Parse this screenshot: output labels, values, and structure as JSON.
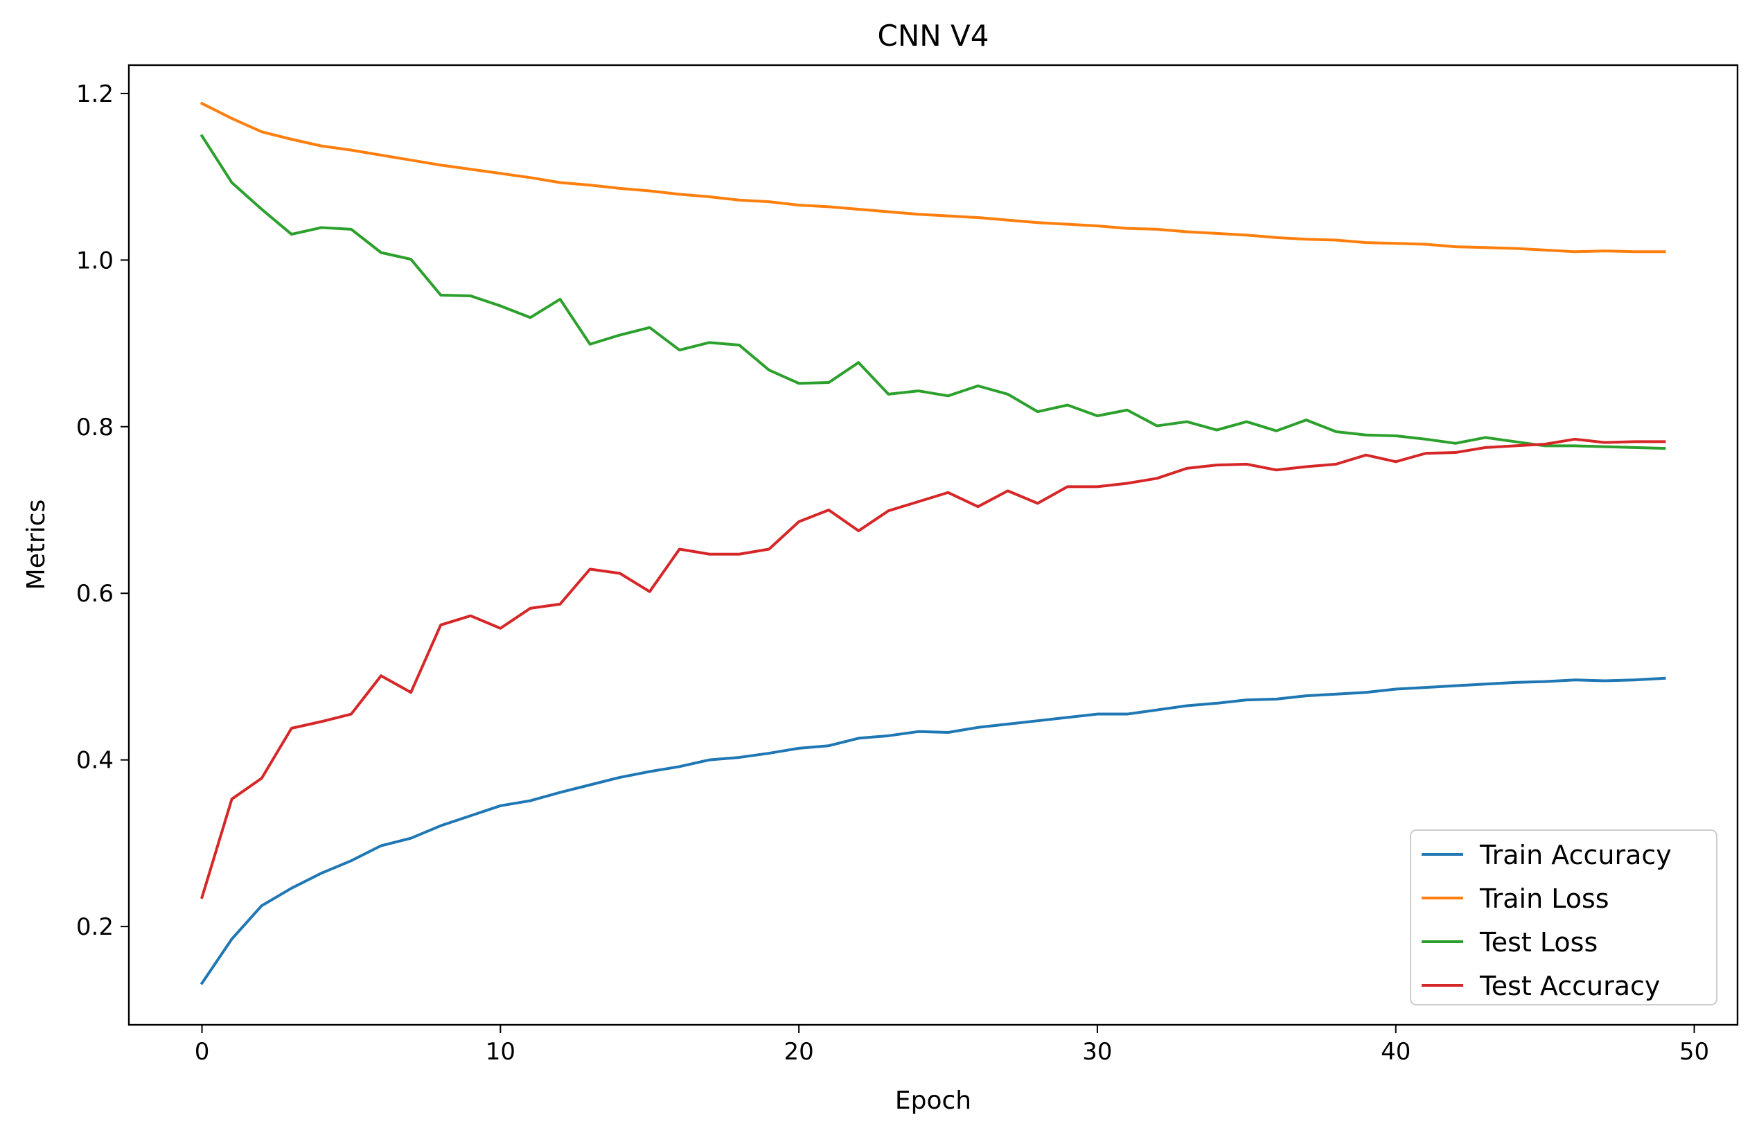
{
  "chart_data": {
    "type": "line",
    "title": "CNN V4",
    "xlabel": "Epoch",
    "ylabel": "Metrics",
    "xlim": [
      -2.45,
      51.45
    ],
    "ylim": [
      0.082,
      1.234
    ],
    "xticks": [
      0,
      10,
      20,
      30,
      40,
      50
    ],
    "yticks": [
      0.2,
      0.4,
      0.6,
      0.8,
      1.0,
      1.2
    ],
    "ytick_labels": [
      "0.2",
      "0.4",
      "0.6",
      "0.8",
      "1.0",
      "1.2"
    ],
    "grid": false,
    "legend_position": "lower-right",
    "x": [
      0,
      1,
      2,
      3,
      4,
      5,
      6,
      7,
      8,
      9,
      10,
      11,
      12,
      13,
      14,
      15,
      16,
      17,
      18,
      19,
      20,
      21,
      22,
      23,
      24,
      25,
      26,
      27,
      28,
      29,
      30,
      31,
      32,
      33,
      34,
      35,
      36,
      37,
      38,
      39,
      40,
      41,
      42,
      43,
      44,
      45,
      46,
      47,
      48,
      49
    ],
    "series": [
      {
        "name": "Train Accuracy",
        "color": "#1f77b4",
        "values": [
          0.132,
          0.185,
          0.225,
          0.246,
          0.264,
          0.279,
          0.297,
          0.306,
          0.321,
          0.333,
          0.345,
          0.351,
          0.361,
          0.37,
          0.379,
          0.386,
          0.392,
          0.4,
          0.403,
          0.408,
          0.414,
          0.417,
          0.426,
          0.429,
          0.434,
          0.433,
          0.439,
          0.443,
          0.447,
          0.451,
          0.455,
          0.455,
          0.46,
          0.465,
          0.468,
          0.472,
          0.473,
          0.477,
          0.479,
          0.481,
          0.485,
          0.487,
          0.489,
          0.491,
          0.493,
          0.494,
          0.496,
          0.495,
          0.496,
          0.498
        ]
      },
      {
        "name": "Train Loss",
        "color": "#ff7f0e",
        "values": [
          1.188,
          1.17,
          1.154,
          1.145,
          1.137,
          1.132,
          1.126,
          1.12,
          1.114,
          1.109,
          1.104,
          1.099,
          1.093,
          1.09,
          1.086,
          1.083,
          1.079,
          1.076,
          1.072,
          1.07,
          1.066,
          1.064,
          1.061,
          1.058,
          1.055,
          1.053,
          1.051,
          1.048,
          1.045,
          1.043,
          1.041,
          1.038,
          1.037,
          1.034,
          1.032,
          1.03,
          1.027,
          1.025,
          1.024,
          1.021,
          1.02,
          1.019,
          1.016,
          1.015,
          1.014,
          1.012,
          1.01,
          1.011,
          1.01,
          1.01
        ]
      },
      {
        "name": "Test Loss",
        "color": "#2ca02c",
        "values": [
          1.149,
          1.093,
          1.061,
          1.031,
          1.039,
          1.037,
          1.009,
          1.001,
          0.958,
          0.957,
          0.945,
          0.931,
          0.953,
          0.899,
          0.91,
          0.919,
          0.892,
          0.901,
          0.898,
          0.868,
          0.852,
          0.853,
          0.877,
          0.839,
          0.843,
          0.837,
          0.849,
          0.839,
          0.818,
          0.826,
          0.813,
          0.82,
          0.801,
          0.806,
          0.796,
          0.806,
          0.795,
          0.808,
          0.794,
          0.79,
          0.789,
          0.785,
          0.78,
          0.787,
          0.782,
          0.777,
          0.777,
          0.776,
          0.775,
          0.774
        ]
      },
      {
        "name": "Test Accuracy",
        "color": "#d62728",
        "values": [
          0.235,
          0.353,
          0.378,
          0.438,
          0.446,
          0.455,
          0.501,
          0.481,
          0.562,
          0.573,
          0.558,
          0.582,
          0.587,
          0.629,
          0.624,
          0.602,
          0.653,
          0.647,
          0.647,
          0.653,
          0.686,
          0.7,
          0.675,
          0.699,
          0.71,
          0.721,
          0.704,
          0.723,
          0.708,
          0.728,
          0.728,
          0.732,
          0.738,
          0.75,
          0.754,
          0.755,
          0.748,
          0.752,
          0.755,
          0.766,
          0.758,
          0.768,
          0.769,
          0.775,
          0.777,
          0.779,
          0.785,
          0.781,
          0.782,
          0.782
        ]
      }
    ]
  }
}
